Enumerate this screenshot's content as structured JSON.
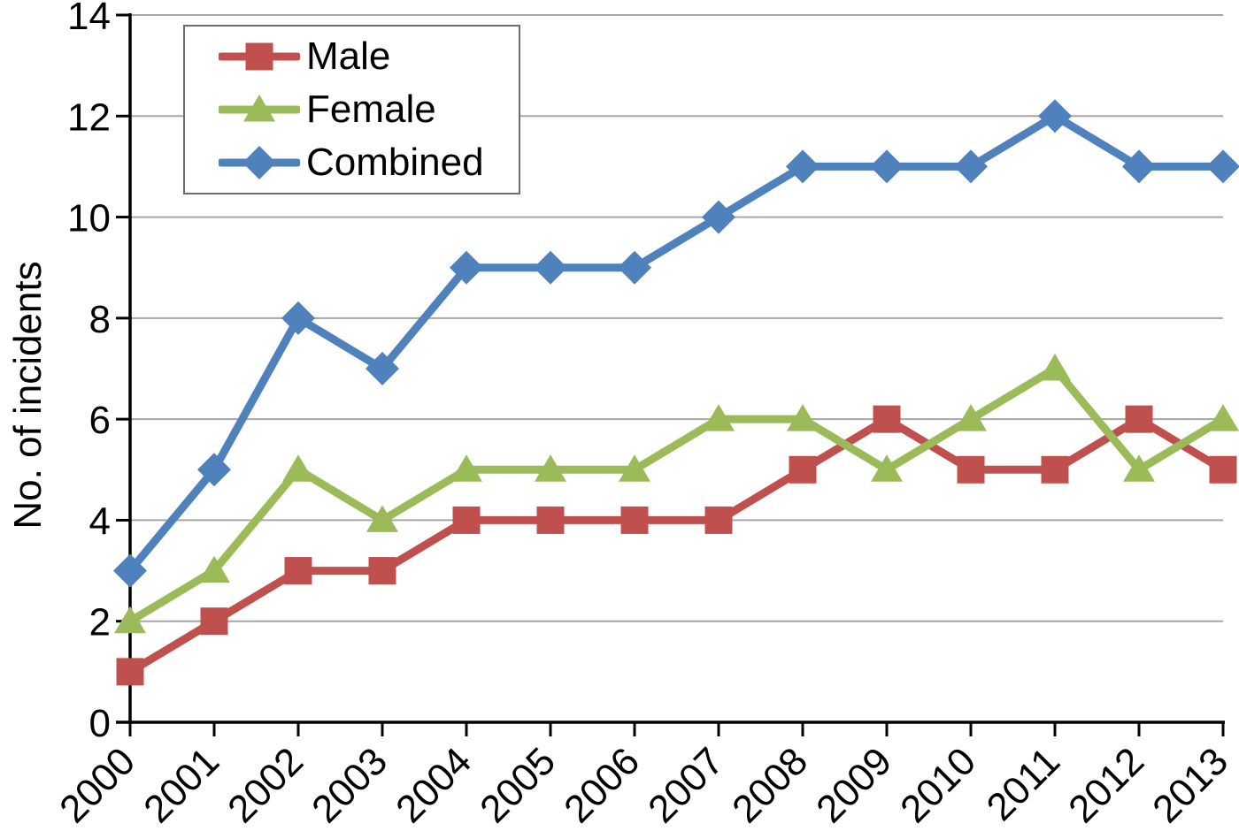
{
  "chart_data": {
    "type": "line",
    "title": "",
    "xlabel": "",
    "ylabel": "No. of incidents",
    "x": [
      "2000",
      "2001",
      "2002",
      "2003",
      "2004",
      "2005",
      "2006",
      "2007",
      "2008",
      "2009",
      "2010",
      "2011",
      "2012",
      "2013"
    ],
    "series": [
      {
        "name": "Male",
        "marker": "square",
        "color": "#C0504D",
        "values": [
          1,
          2,
          3,
          3,
          4,
          4,
          4,
          4,
          5,
          6,
          5,
          5,
          6,
          5
        ]
      },
      {
        "name": "Female",
        "marker": "triangle",
        "color": "#9BBB59",
        "values": [
          2,
          3,
          5,
          4,
          5,
          5,
          5,
          6,
          6,
          5,
          6,
          7,
          5,
          6
        ]
      },
      {
        "name": "Combined",
        "marker": "diamond",
        "color": "#4F81BD",
        "values": [
          3,
          5,
          8,
          7,
          9,
          9,
          9,
          10,
          11,
          11,
          11,
          12,
          11,
          11
        ]
      }
    ],
    "ylim": [
      0,
      14
    ],
    "ytick_step": 2,
    "grid": true,
    "legend_position": "top-left",
    "colors": {
      "gridline": "#A6A6A6",
      "axis": "#000000",
      "text": "#000000",
      "legend_border": "#6E6E6E",
      "background": "#FFFFFF"
    }
  }
}
